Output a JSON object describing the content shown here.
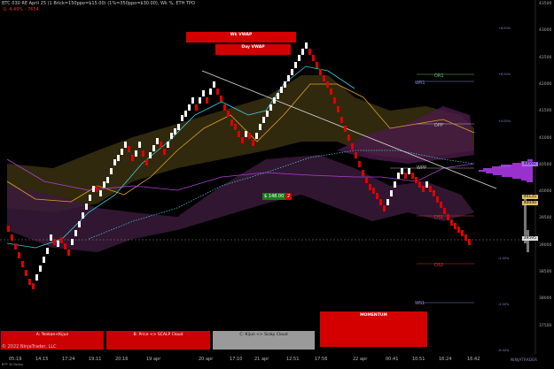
{
  "header": {
    "line1": "BTC 030 RE April 25 (1 Brick=150ppo=$15.00) (1%=350ppo=$30.00), Wk %, ETH TPO",
    "line2": "-S: 4.49% - 7654"
  },
  "banners": {
    "wk_vwap": "Wk VWAP",
    "day_vwap": "Day VWAP",
    "momentum": "MOMENTUM"
  },
  "levels": {
    "dr1": "DR1",
    "wr1": "WR1",
    "dpp": "DPP",
    "wpp": "WPP",
    "ds1": "DS1",
    "ds2": "DS2",
    "ws1": "WS1"
  },
  "trade_tag": {
    "pnl": "$ 148.00",
    "qty": "2"
  },
  "price_boxes": {
    "top": "40592",
    "mid": "40135",
    "low": "40040",
    "last": "39595"
  },
  "price_scale": [
    "43500",
    "43000",
    "42500",
    "42000",
    "41500",
    "41000",
    "40500",
    "40000",
    "39500",
    "39000",
    "38500",
    "38000",
    "37500"
  ],
  "percent_labels": [
    "+8.00%",
    "+6.00%",
    "+4.00%",
    "+2.00%",
    "-2.00%",
    "-4.00%",
    "-6.00%"
  ],
  "x_axis": [
    "05:19",
    "14:15",
    "17:24",
    "19:11",
    "20:16",
    "19 apr",
    "20 apr",
    "17:10",
    "21 apr",
    "12:51",
    "17:56",
    "22 apr",
    "00:41",
    "10:51",
    "16:24",
    "16:42"
  ],
  "buttons": {
    "tenkan": "A: Tenkan<Kijun",
    "price_cloud": "B: Price <> SCALP Cloud",
    "kijun_cloud": "C: Kijun <> Scalp Cloud"
  },
  "copyright": "© 2022 NinjaTrader, LLC",
  "footer": "BTP 30 Renko",
  "brand": "NINJATRADER",
  "colors": {
    "up": "#ffffff",
    "down": "#e00000",
    "pivot": "#a8a8d8",
    "accent": "#9932cc"
  },
  "chart_data": {
    "type": "table",
    "series": [
      {
        "name": "",
        "values": []
      }
    ]
  }
}
